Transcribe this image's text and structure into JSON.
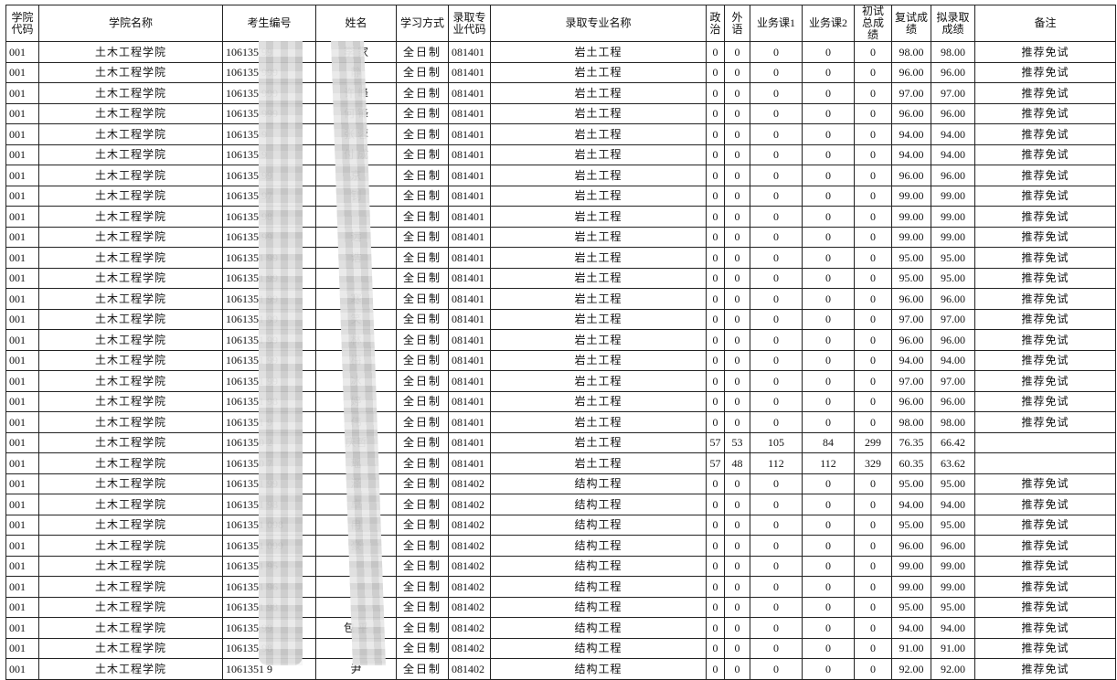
{
  "headers": [
    "学院代码",
    "学院名称",
    "考生编号",
    "姓名",
    "学习方式",
    "录取专业代码",
    "录取专业名称",
    "政治",
    "外语",
    "业务课1",
    "业务课2",
    "初试总成绩",
    "复试成绩",
    "拟录取成绩",
    "备注"
  ],
  "rows": [
    {
      "code": "001",
      "college": "土木工程学院",
      "id": "106135 99",
      "name": "李 家",
      "mode": "全日制",
      "major_code": "081401",
      "major": "岩土工程",
      "politics": "0",
      "lang": "0",
      "c1": "0",
      "c2": "0",
      "total": "0",
      "retest": "98.00",
      "final": "98.00",
      "note": "推荐免试"
    },
    {
      "code": "001",
      "college": "土木工程学院",
      "id": "106135 999",
      "name": "静",
      "mode": "全日制",
      "major_code": "081401",
      "major": "岩土工程",
      "politics": "0",
      "lang": "0",
      "c1": "0",
      "c2": "0",
      "total": "0",
      "retest": "96.00",
      "final": "96.00",
      "note": "推荐免试"
    },
    {
      "code": "001",
      "college": "土木工程学院",
      "id": "106135 999",
      "name": "许 峰",
      "mode": "全日制",
      "major_code": "081401",
      "major": "岩土工程",
      "politics": "0",
      "lang": "0",
      "c1": "0",
      "c2": "0",
      "total": "0",
      "retest": "97.00",
      "final": "97.00",
      "note": "推荐免试"
    },
    {
      "code": "001",
      "college": "土木工程学院",
      "id": "106135 999",
      "name": "何 锋",
      "mode": "全日制",
      "major_code": "081401",
      "major": "岩土工程",
      "politics": "0",
      "lang": "0",
      "c1": "0",
      "c2": "0",
      "total": "0",
      "retest": "96.00",
      "final": "96.00",
      "note": "推荐免试"
    },
    {
      "code": "001",
      "college": "土木工程学院",
      "id": "106135 9",
      "name": "张 蓉",
      "mode": "全日制",
      "major_code": "081401",
      "major": "岩土工程",
      "politics": "0",
      "lang": "0",
      "c1": "0",
      "c2": "0",
      "total": "0",
      "retest": "94.00",
      "final": "94.00",
      "note": "推荐免试"
    },
    {
      "code": "001",
      "college": "土木工程学院",
      "id": "106135 9",
      "name": "付 成",
      "mode": "全日制",
      "major_code": "081401",
      "major": "岩土工程",
      "politics": "0",
      "lang": "0",
      "c1": "0",
      "c2": "0",
      "total": "0",
      "retest": "94.00",
      "final": "94.00",
      "note": "推荐免试"
    },
    {
      "code": "001",
      "college": "土木工程学院",
      "id": "106135 99",
      "name": "京",
      "mode": "全日制",
      "major_code": "081401",
      "major": "岩土工程",
      "politics": "0",
      "lang": "0",
      "c1": "0",
      "c2": "0",
      "total": "0",
      "retest": "96.00",
      "final": "96.00",
      "note": "推荐免试"
    },
    {
      "code": "001",
      "college": "土木工程学院",
      "id": "106135 97",
      "name": "钊",
      "mode": "全日制",
      "major_code": "081401",
      "major": "岩土工程",
      "politics": "0",
      "lang": "0",
      "c1": "0",
      "c2": "0",
      "total": "0",
      "retest": "99.00",
      "final": "99.00",
      "note": "推荐免试"
    },
    {
      "code": "001",
      "college": "土木工程学院",
      "id": "106135 98",
      "name": "",
      "mode": "全日制",
      "major_code": "081401",
      "major": "岩土工程",
      "politics": "0",
      "lang": "0",
      "c1": "0",
      "c2": "0",
      "total": "0",
      "retest": "99.00",
      "final": "99.00",
      "note": "推荐免试"
    },
    {
      "code": "001",
      "college": "土木工程学院",
      "id": "106135 99",
      "name": "远",
      "mode": "全日制",
      "major_code": "081401",
      "major": "岩土工程",
      "politics": "0",
      "lang": "0",
      "c1": "0",
      "c2": "0",
      "total": "0",
      "retest": "99.00",
      "final": "99.00",
      "note": "推荐免试"
    },
    {
      "code": "001",
      "college": "土木工程学院",
      "id": "1061351 99",
      "name": "浩",
      "mode": "全日制",
      "major_code": "081401",
      "major": "岩土工程",
      "politics": "0",
      "lang": "0",
      "c1": "0",
      "c2": "0",
      "total": "0",
      "retest": "95.00",
      "final": "95.00",
      "note": "推荐免试"
    },
    {
      "code": "001",
      "college": "土木工程学院",
      "id": "1061351 99",
      "name": "",
      "mode": "全日制",
      "major_code": "081401",
      "major": "岩土工程",
      "politics": "0",
      "lang": "0",
      "c1": "0",
      "c2": "0",
      "total": "0",
      "retest": "95.00",
      "final": "95.00",
      "note": "推荐免试"
    },
    {
      "code": "001",
      "college": "土木工程学院",
      "id": "1061351 99",
      "name": "寒",
      "mode": "全日制",
      "major_code": "081401",
      "major": "岩土工程",
      "politics": "0",
      "lang": "0",
      "c1": "0",
      "c2": "0",
      "total": "0",
      "retest": "96.00",
      "final": "96.00",
      "note": "推荐免试"
    },
    {
      "code": "001",
      "college": "土木工程学院",
      "id": "1061351 99",
      "name": "笑",
      "mode": "全日制",
      "major_code": "081401",
      "major": "岩土工程",
      "politics": "0",
      "lang": "0",
      "c1": "0",
      "c2": "0",
      "total": "0",
      "retest": "97.00",
      "final": "97.00",
      "note": "推荐免试"
    },
    {
      "code": "001",
      "college": "土木工程学院",
      "id": "1061351 99",
      "name": "林",
      "mode": "全日制",
      "major_code": "081401",
      "major": "岩土工程",
      "politics": "0",
      "lang": "0",
      "c1": "0",
      "c2": "0",
      "total": "0",
      "retest": "96.00",
      "final": "96.00",
      "note": "推荐免试"
    },
    {
      "code": "001",
      "college": "土木工程学院",
      "id": "1061351 99",
      "name": "梅",
      "mode": "全日制",
      "major_code": "081401",
      "major": "岩土工程",
      "politics": "0",
      "lang": "0",
      "c1": "0",
      "c2": "0",
      "total": "0",
      "retest": "94.00",
      "final": "94.00",
      "note": "推荐免试"
    },
    {
      "code": "001",
      "college": "土木工程学院",
      "id": "1061351 99",
      "name": "冰",
      "mode": "全日制",
      "major_code": "081401",
      "major": "岩土工程",
      "politics": "0",
      "lang": "0",
      "c1": "0",
      "c2": "0",
      "total": "0",
      "retest": "97.00",
      "final": "97.00",
      "note": "推荐免试"
    },
    {
      "code": "001",
      "college": "土木工程学院",
      "id": "1061351 98",
      "name": "婷",
      "mode": "全日制",
      "major_code": "081401",
      "major": "岩土工程",
      "politics": "0",
      "lang": "0",
      "c1": "0",
      "c2": "0",
      "total": "0",
      "retest": "96.00",
      "final": "96.00",
      "note": "推荐免试"
    },
    {
      "code": "001",
      "college": "土木工程学院",
      "id": "1061351 9",
      "name": "伟",
      "mode": "全日制",
      "major_code": "081401",
      "major": "岩土工程",
      "politics": "0",
      "lang": "0",
      "c1": "0",
      "c2": "0",
      "total": "0",
      "retest": "98.00",
      "final": "98.00",
      "note": "推荐免试"
    },
    {
      "code": "001",
      "college": "土木工程学院",
      "id": "1061350 2",
      "name": "庆哲",
      "mode": "全日制",
      "major_code": "081401",
      "major": "岩土工程",
      "politics": "57",
      "lang": "53",
      "c1": "105",
      "c2": "84",
      "total": "299",
      "retest": "76.35",
      "final": "66.42",
      "note": ""
    },
    {
      "code": "001",
      "college": "土木工程学院",
      "id": "1061350 7",
      "name": "瑶",
      "mode": "全日制",
      "major_code": "081401",
      "major": "岩土工程",
      "politics": "57",
      "lang": "48",
      "c1": "112",
      "c2": "112",
      "total": "329",
      "retest": "60.35",
      "final": "63.62",
      "note": ""
    },
    {
      "code": "001",
      "college": "土木工程学院",
      "id": "1061351 99",
      "name": "泽",
      "mode": "全日制",
      "major_code": "081402",
      "major": "结构工程",
      "politics": "0",
      "lang": "0",
      "c1": "0",
      "c2": "0",
      "total": "0",
      "retest": "95.00",
      "final": "95.00",
      "note": "推荐免试"
    },
    {
      "code": "001",
      "college": "土木工程学院",
      "id": "1061351 98",
      "name": "卓",
      "mode": "全日制",
      "major_code": "081402",
      "major": "结构工程",
      "politics": "0",
      "lang": "0",
      "c1": "0",
      "c2": "0",
      "total": "0",
      "retest": "94.00",
      "final": "94.00",
      "note": "推荐免试"
    },
    {
      "code": "001",
      "college": "土木工程学院",
      "id": "1061351 098",
      "name": "冉",
      "mode": "全日制",
      "major_code": "081402",
      "major": "结构工程",
      "politics": "0",
      "lang": "0",
      "c1": "0",
      "c2": "0",
      "total": "0",
      "retest": "95.00",
      "final": "95.00",
      "note": "推荐免试"
    },
    {
      "code": "001",
      "college": "土木工程学院",
      "id": "1061351 099",
      "name": "豪",
      "mode": "全日制",
      "major_code": "081402",
      "major": "结构工程",
      "politics": "0",
      "lang": "0",
      "c1": "0",
      "c2": "0",
      "total": "0",
      "retest": "96.00",
      "final": "96.00",
      "note": "推荐免试"
    },
    {
      "code": "001",
      "college": "土木工程学院",
      "id": "1061351 95",
      "name": "",
      "mode": "全日制",
      "major_code": "081402",
      "major": "结构工程",
      "politics": "0",
      "lang": "0",
      "c1": "0",
      "c2": "0",
      "total": "0",
      "retest": "99.00",
      "final": "99.00",
      "note": "推荐免试"
    },
    {
      "code": "001",
      "college": "土木工程学院",
      "id": "1061351 96",
      "name": "",
      "mode": "全日制",
      "major_code": "081402",
      "major": "结构工程",
      "politics": "0",
      "lang": "0",
      "c1": "0",
      "c2": "0",
      "total": "0",
      "retest": "99.00",
      "final": "99.00",
      "note": "推荐免试"
    },
    {
      "code": "001",
      "college": "土木工程学院",
      "id": "1061351 98",
      "name": "",
      "mode": "全日制",
      "major_code": "081402",
      "major": "结构工程",
      "politics": "0",
      "lang": "0",
      "c1": "0",
      "c2": "0",
      "total": "0",
      "retest": "95.00",
      "final": "95.00",
      "note": "推荐免试"
    },
    {
      "code": "001",
      "college": "土木工程学院",
      "id": "106135 99",
      "name": "包 平",
      "mode": "全日制",
      "major_code": "081402",
      "major": "结构工程",
      "politics": "0",
      "lang": "0",
      "c1": "0",
      "c2": "0",
      "total": "0",
      "retest": "94.00",
      "final": "94.00",
      "note": "推荐免试"
    },
    {
      "code": "001",
      "college": "土木工程学院",
      "id": "106135 98",
      "name": "",
      "mode": "全日制",
      "major_code": "081402",
      "major": "结构工程",
      "politics": "0",
      "lang": "0",
      "c1": "0",
      "c2": "0",
      "total": "0",
      "retest": "91.00",
      "final": "91.00",
      "note": "推荐免试"
    },
    {
      "code": "001",
      "college": "土木工程学院",
      "id": "1061351 9",
      "name": "尹",
      "mode": "全日制",
      "major_code": "081402",
      "major": "结构工程",
      "politics": "0",
      "lang": "0",
      "c1": "0",
      "c2": "0",
      "total": "0",
      "retest": "92.00",
      "final": "92.00",
      "note": "推荐免试"
    }
  ]
}
